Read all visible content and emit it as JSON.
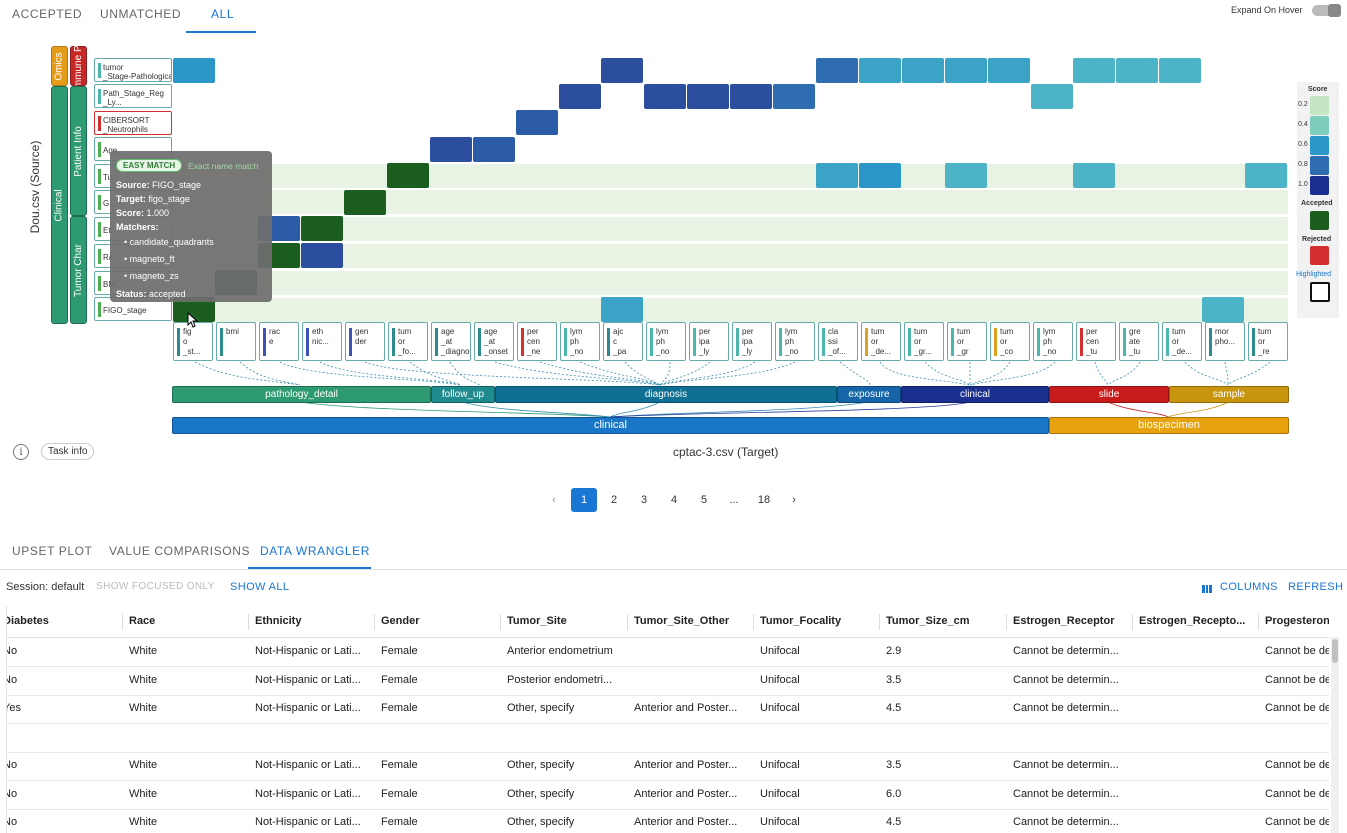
{
  "top_tabs": [
    "ACCEPTED",
    "UNMATCHED",
    "ALL"
  ],
  "expand_on_hover": "Expand On Hover",
  "source_axis_label": "Dou.csv (Source)",
  "target_axis_label": "cptac-3.csv (Target)",
  "source_groups": {
    "omics": "Omics",
    "immune": "Immune Pr",
    "clinical": "Clinical",
    "patient_info": "Patient Info",
    "tumor_char": "Tumor Char"
  },
  "source_rows": [
    {
      "label": "tumor\n_Stage-Pathological",
      "color": "#4db6ac"
    },
    {
      "label": "Path_Stage_Reg\n_Ly...",
      "color": "#4db6ac"
    },
    {
      "label": "CIBERSORT\n_Neutrophils",
      "color": "#d32f2f"
    },
    {
      "label": "Age",
      "color": "#4caf50"
    },
    {
      "label": "Tu...",
      "color": "#4caf50"
    },
    {
      "label": "G...",
      "color": "#4caf50"
    },
    {
      "label": "Et...",
      "color": "#4caf50"
    },
    {
      "label": "Ra...",
      "color": "#4caf50"
    },
    {
      "label": "BM...",
      "color": "#4caf50"
    },
    {
      "label": "FIGO_stage",
      "color": "#4caf50"
    }
  ],
  "target_columns": [
    {
      "label": "fig\no\n_st...",
      "color": "#2e8b8b"
    },
    {
      "label": "bmi",
      "color": "#2e8b8b"
    },
    {
      "label": "rac\ne",
      "color": "#3f51b5"
    },
    {
      "label": "eth\nnic...",
      "color": "#3f51b5"
    },
    {
      "label": "gen\nder",
      "color": "#3f51b5"
    },
    {
      "label": "tum\nor\n_fo...",
      "color": "#2e8b8b"
    },
    {
      "label": "age\n_at\n_diagnosis",
      "color": "#2e8b8b"
    },
    {
      "label": "age\n_at\n_onset",
      "color": "#2e8b8b"
    },
    {
      "label": "per\ncen\n_ne",
      "color": "#d32f2f"
    },
    {
      "label": "lym\nph\n_no",
      "color": "#4db6ac"
    },
    {
      "label": "ajc\nc\n_pa",
      "color": "#2e8b8b"
    },
    {
      "label": "lym\nph\n_no",
      "color": "#4db6ac"
    },
    {
      "label": "per\nipa\n_ly",
      "color": "#4db6ac"
    },
    {
      "label": "per\nipa\n_ly",
      "color": "#4db6ac"
    },
    {
      "label": "lym\nph\n_no",
      "color": "#4db6ac"
    },
    {
      "label": "cla\nssi\n_of...",
      "color": "#4db6ac"
    },
    {
      "label": "tum\nor\n_de...",
      "color": "#e0a020"
    },
    {
      "label": "tum\nor\n_gr...",
      "color": "#4db6ac"
    },
    {
      "label": "tum\nor\n_gr",
      "color": "#4db6ac"
    },
    {
      "label": "tum\nor\n_co",
      "color": "#e0a020"
    },
    {
      "label": "lym\nph\n_no",
      "color": "#4db6ac"
    },
    {
      "label": "per\ncen\n_tu",
      "color": "#d32f2f"
    },
    {
      "label": "gre\nate\n_tu",
      "color": "#4db6ac"
    },
    {
      "label": "tum\nor\n_de...",
      "color": "#4db6ac"
    },
    {
      "label": "mor\npho...",
      "color": "#2e8b8b"
    },
    {
      "label": "tum\nor\n_re",
      "color": "#2e8b8b"
    }
  ],
  "target_groups_lvl1": [
    "pathology_detail",
    "follow_up",
    "diagnosis",
    "exposure",
    "clinical",
    "slide",
    "sample"
  ],
  "target_groups_lvl2": [
    "clinical",
    "biospecimen"
  ],
  "legend": {
    "title": "Score",
    "ticks": [
      "0.2",
      "0.4",
      "0.6",
      "0.8",
      "1.0"
    ],
    "accepted": "Accepted",
    "rejected": "Rejected",
    "highlighted": "Highlighted"
  },
  "tooltip": {
    "badge": "EASY MATCH",
    "badge_note": "Exact name match",
    "source_label": "Source:",
    "source": "FIGO_stage",
    "target_label": "Target:",
    "target": "figo_stage",
    "score_label": "Score:",
    "score": "1.000",
    "matchers_label": "Matchers:",
    "matchers": [
      "candidate_quadrants",
      "magneto_ft",
      "magneto_zs"
    ],
    "status_label": "Status:",
    "status": "accepted"
  },
  "task_info": "Task info",
  "pagination": [
    "1",
    "2",
    "3",
    "4",
    "5",
    "...",
    "18"
  ],
  "bottom_tabs": [
    "UPSET PLOT",
    "VALUE COMPARISONS",
    "DATA WRANGLER"
  ],
  "session": "Session: default",
  "show_focused_only": "SHOW FOCUSED ONLY",
  "show_all": "SHOW ALL",
  "columns_btn": "COLUMNS",
  "refresh_btn": "REFRESH",
  "table": {
    "headers": [
      "Diabetes",
      "Race",
      "Ethnicity",
      "Gender",
      "Tumor_Site",
      "Tumor_Site_Other",
      "Tumor_Focality",
      "Tumor_Size_cm",
      "Estrogen_Receptor",
      "Estrogen_Recepto...",
      "Progesterone_"
    ],
    "rows": [
      [
        "No",
        "White",
        "Not-Hispanic or Lati...",
        "Female",
        "Anterior endometrium",
        "",
        "Unifocal",
        "2.9",
        "Cannot be determin...",
        "",
        "Cannot be de"
      ],
      [
        "No",
        "White",
        "Not-Hispanic or Lati...",
        "Female",
        "Posterior endometri...",
        "",
        "Unifocal",
        "3.5",
        "Cannot be determin...",
        "",
        "Cannot be de"
      ],
      [
        "Yes",
        "White",
        "Not-Hispanic or Lati...",
        "Female",
        "Other, specify",
        "Anterior and Poster...",
        "Unifocal",
        "4.5",
        "Cannot be determin...",
        "",
        "Cannot be de"
      ],
      [
        "",
        "",
        "",
        "",
        "",
        "",
        "",
        "",
        "",
        "",
        ""
      ],
      [
        "No",
        "White",
        "Not-Hispanic or Lati...",
        "Female",
        "Other, specify",
        "Anterior and Poster...",
        "Unifocal",
        "3.5",
        "Cannot be determin...",
        "",
        "Cannot be de"
      ],
      [
        "No",
        "White",
        "Not-Hispanic or Lati...",
        "Female",
        "Other, specify",
        "Anterior and Poster...",
        "Unifocal",
        "6.0",
        "Cannot be determin...",
        "",
        "Cannot be de"
      ],
      [
        "No",
        "White",
        "Not-Hispanic or Lati...",
        "Female",
        "Other, specify",
        "Anterior and Poster...",
        "Unifocal",
        "4.5",
        "Cannot be determin...",
        "",
        "Cannot be de"
      ]
    ]
  },
  "colors": {
    "accent": "#1976d2",
    "accepted": "#1b5e20",
    "rejected": "#d32f2f"
  }
}
